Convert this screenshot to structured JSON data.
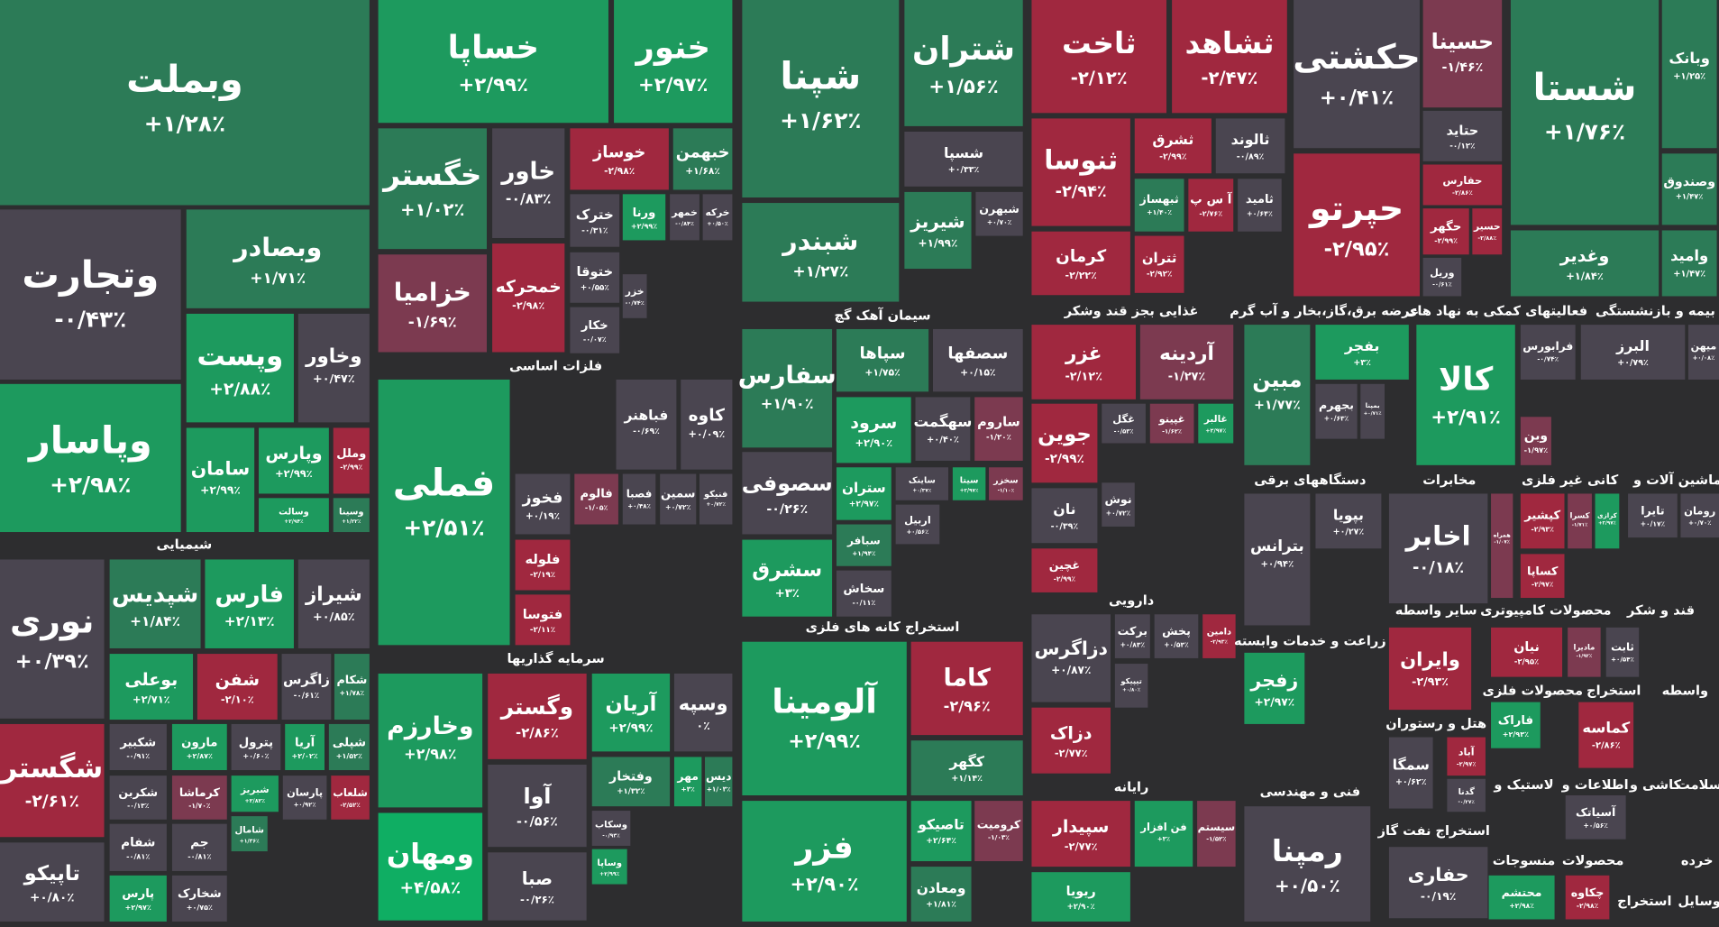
{
  "chart_data": {
    "type": "treemap",
    "categories": [
      "وبملت",
      "وتجارت",
      "وبصادر",
      "وپست",
      "وخاور",
      "وپاسار",
      "سامان",
      "وپارس",
      "وملل",
      "وسالت",
      "وسینا",
      "نوری",
      "شپدیس",
      "فارس",
      "شیراز",
      "بوعلی",
      "شفن",
      "زاگرس",
      "شکام",
      "شگستر",
      "شکبیر",
      "مارون",
      "پترول",
      "آریا",
      "شپلی",
      "شکربن",
      "کرماشا",
      "شبریز",
      "پارسان",
      "شلعاب",
      "شامال",
      "شفام",
      "جم",
      "تاپیکو",
      "پارس",
      "شخارک",
      "خساپا",
      "خنور",
      "خگستر",
      "خاور",
      "خوساز",
      "خبهمن",
      "خترک",
      "ورنا",
      "خمهر",
      "خرکه",
      "خزامیا",
      "خمحرکه",
      "ختوقا",
      "خزر",
      "خکار",
      "فملی",
      "فباهنر",
      "کاوه",
      "فخوز",
      "فالوم",
      "فصبا",
      "سمین",
      "فنیکو",
      "فلوله",
      "فتوسا",
      "وخارزم",
      "ومهان",
      "وگستر",
      "آریان",
      "وسپه",
      "آوا",
      "وفتخار",
      "مهر",
      "دیس",
      "وسکاب",
      "صبا",
      "وساپا",
      "شپنا",
      "شتران",
      "شسپا",
      "شبندر",
      "شیریز",
      "شبهرن",
      "سفارس",
      "سپاها",
      "سصفها",
      "سرود",
      "سهگمت",
      "ساروم",
      "سصوفی",
      "ستران",
      "ساینک",
      "سیتا",
      "سخزر",
      "اربیل",
      "سبافر",
      "سشرق",
      "سخاش",
      "آلومینا",
      "کاما",
      "کگهر",
      "فزر",
      "تاصیکو",
      "کرومیت",
      "ومعادن",
      "ثاخت",
      "ثشاهد",
      "ثنوسا",
      "ثشرق",
      "ثالوند",
      "ثبهساز",
      "آ س پ",
      "ثامید",
      "کرمان",
      "ثتران",
      "غزر",
      "آردینه",
      "جوین",
      "غگل",
      "غپینو",
      "غالبر",
      "نان",
      "نوش",
      "غچین",
      "دزاگرس",
      "برکت",
      "پخش",
      "دامین",
      "تیپیکو",
      "دزاک",
      "سپیدار",
      "فن افزار",
      "سیستم",
      "ریویا",
      "حکشتی",
      "حسینا",
      "حتاید",
      "حفارس",
      "حپرتو",
      "حگهر",
      "حسیر",
      "وریل",
      "شستا",
      "وبانک",
      "وصندوق",
      "وامید",
      "وغدیر",
      "مبین",
      "بفجر",
      "بجهرم",
      "بمپنا",
      "کالا",
      "فرابورس",
      "البرز",
      "میهن",
      "وبن",
      "بترانس",
      "بپویا",
      "اخابر",
      "همراه",
      "کپشیر",
      "کسرا",
      "کرازی",
      "کساپا",
      "تایرا",
      "رومان",
      "زفجر",
      "وایران",
      "نیان",
      "مادیرا",
      "ثابت",
      "فاراک",
      "کماسه",
      "سمگا",
      "آباد",
      "گدنا",
      "رمپنا",
      "آسیاتک",
      "حفاری",
      "محتشم",
      "چکاوه"
    ],
    "values": [
      1.28,
      -0.43,
      1.71,
      2.88,
      0.47,
      2.98,
      2.99,
      2.99,
      -2.99,
      2.94,
      1.22,
      0.39,
      1.84,
      2.13,
      0.85,
      2.71,
      -2.1,
      -0.61,
      1.78,
      -2.61,
      -0.91,
      2.87,
      0.6,
      2.02,
      1.52,
      -0.13,
      -1.7,
      2.82,
      0.92,
      -2.52,
      1.36,
      -0.81,
      -0.81,
      0.8,
      2.97,
      0.75,
      2.99,
      2.97,
      1.02,
      -0.83,
      -2.98,
      1.68,
      -0.31,
      2.99,
      -0.84,
      0.5,
      -1.69,
      -2.98,
      0.55,
      -0.74,
      -0.07,
      2.51,
      -0.69,
      0.09,
      0.19,
      -1.05,
      0.48,
      0.72,
      0.72,
      -2.19,
      -2.11,
      2.98,
      4.58,
      -2.86,
      2.99,
      0,
      -0.56,
      1.32,
      3,
      1.03,
      -0.93,
      -0.26,
      2.99,
      1.62,
      1.56,
      0.33,
      1.27,
      1.99,
      0.7,
      1.9,
      1.75,
      0.15,
      2.9,
      0.4,
      -1.2,
      -0.26,
      2.97,
      0.37,
      2.97,
      -1.1,
      0.56,
      1.94,
      3,
      -0.11,
      2.99,
      -2.96,
      1.14,
      2.9,
      2.64,
      -1.03,
      1.81,
      -2.12,
      -2.47,
      -2.94,
      -2.99,
      -0.89,
      1.4,
      -2.76,
      0.64,
      -2.22,
      -2.92,
      -2.12,
      -1.27,
      -2.99,
      -0.53,
      -1.62,
      2.97,
      -0.39,
      0.72,
      -2.99,
      0.87,
      0.83,
      0.53,
      -2.93,
      0.8,
      -2.77,
      -2.77,
      3,
      -1.52,
      2.9,
      0.41,
      -1.46,
      -0.12,
      -2.86,
      -2.95,
      -2.99,
      -2.88,
      -0.61,
      1.76,
      1.25,
      1.47,
      1.47,
      1.84,
      1.77,
      3,
      0.63,
      0.71,
      2.91,
      -0.74,
      0.79,
      0.08,
      -1.97,
      0.94,
      0.27,
      -0.18,
      -1.07,
      -2.93,
      -1.71,
      2.97,
      -2.97,
      0.17,
      0.7,
      2.97,
      -2.93,
      -2.95,
      -1.92,
      0.54,
      2.93,
      -2.86,
      0.62,
      -2.97,
      -0.27,
      0.5,
      0.56,
      -0.19,
      2.98,
      -2.98
    ],
    "value_labels": [
      "+۱/۲۸٪",
      "-۰/۴۳٪",
      "+۱/۷۱٪",
      "+۲/۸۸٪",
      "+۰/۴۷٪",
      "+۲/۹۸٪",
      "+۲/۹۹٪",
      "+۲/۹۹٪",
      "-۲/۹۹٪",
      "+۲/۹۴٪",
      "+۱/۲۲٪",
      "+۰/۳۹٪",
      "+۱/۸۴٪",
      "+۲/۱۳٪",
      "+۰/۸۵٪",
      "+۲/۷۱٪",
      "-۲/۱۰٪",
      "-۰/۶۱٪",
      "+۱/۷۸٪",
      "-۲/۶۱٪",
      "-۰/۹۱٪",
      "+۲/۸۷٪",
      "+۰/۶۰٪",
      "+۲/۰۲٪",
      "+۱/۵۲٪",
      "-۰/۱۳٪",
      "-۱/۷۰٪",
      "+۲/۸۲٪",
      "+۰/۹۲٪",
      "-۲/۵۲٪",
      "+۱/۳۶٪",
      "-۰/۸۱٪",
      "-۰/۸۱٪",
      "+۰/۸۰٪",
      "+۲/۹۷٪",
      "+۰/۷۵٪",
      "+۲/۹۹٪",
      "+۲/۹۷٪",
      "+۱/۰۲٪",
      "-۰/۸۳٪",
      "-۲/۹۸٪",
      "+۱/۶۸٪",
      "-۰/۳۱٪",
      "+۲/۹۹٪",
      "-۰/۸۴٪",
      "+۰/۵۰٪",
      "-۱/۶۹٪",
      "-۲/۹۸٪",
      "+۰/۵۵٪",
      "-۰/۷۴٪",
      "-۰/۰۷٪",
      "+۲/۵۱٪",
      "-۰/۶۹٪",
      "+۰/۰۹٪",
      "+۰/۱۹٪",
      "-۱/۰۵٪",
      "+۰/۴۸٪",
      "+۰/۷۲٪",
      "+۰/۷۲٪",
      "-۲/۱۹٪",
      "-۲/۱۱٪",
      "+۲/۹۸٪",
      "+۴/۵۸٪",
      "-۲/۸۶٪",
      "+۲/۹۹٪",
      "۰٪",
      "-۰/۵۶٪",
      "+۱/۳۲٪",
      "+۳٪",
      "+۱/۰۳٪",
      "-۰/۹۳٪",
      "-۰/۲۶٪",
      "+۲/۹۹٪",
      "+۱/۶۲٪",
      "+۱/۵۶٪",
      "+۰/۳۳٪",
      "+۱/۲۷٪",
      "+۱/۹۹٪",
      "+۰/۷۰٪",
      "+۱/۹۰٪",
      "+۱/۷۵٪",
      "+۰/۱۵٪",
      "+۲/۹۰٪",
      "+۰/۴۰٪",
      "-۱/۲۰٪",
      "-۰/۲۶٪",
      "+۲/۹۷٪",
      "+۰/۳۷٪",
      "+۲/۹۷٪",
      "-۱/۱۰٪",
      "+۰/۵۶٪",
      "+۱/۹۴٪",
      "+۳٪",
      "-۰/۱۱٪",
      "+۲/۹۹٪",
      "-۲/۹۶٪",
      "+۱/۱۴٪",
      "+۲/۹۰٪",
      "+۲/۶۴٪",
      "-۱/۰۳٪",
      "+۱/۸۱٪",
      "-۲/۱۲٪",
      "-۲/۴۷٪",
      "-۲/۹۴٪",
      "-۲/۹۹٪",
      "-۰/۸۹٪",
      "+۱/۴۰٪",
      "-۲/۷۶٪",
      "+۰/۶۴٪",
      "-۲/۲۲٪",
      "-۲/۹۲٪",
      "-۲/۱۲٪",
      "-۱/۲۷٪",
      "-۲/۹۹٪",
      "-۰/۵۳٪",
      "-۱/۶۲٪",
      "+۲/۹۷٪",
      "-۰/۳۹٪",
      "+۰/۷۲٪",
      "-۲/۹۹٪",
      "+۰/۸۷٪",
      "+۰/۸۳٪",
      "+۰/۵۳٪",
      "-۲/۹۳٪",
      "+۰/۸۰٪",
      "-۲/۷۷٪",
      "-۲/۷۷٪",
      "+۳٪",
      "-۱/۵۲٪",
      "+۲/۹۰٪",
      "+۰/۴۱٪",
      "-۱/۴۶٪",
      "-۰/۱۲٪",
      "-۲/۸۶٪",
      "-۲/۹۵٪",
      "-۲/۹۹٪",
      "-۲/۸۸٪",
      "-۰/۶۱٪",
      "+۱/۷۶٪",
      "+۱/۲۵٪",
      "+۱/۴۷٪",
      "+۱/۴۷٪",
      "+۱/۸۴٪",
      "+۱/۷۷٪",
      "+۳٪",
      "+۰/۶۳٪",
      "+۰/۷۱٪",
      "+۲/۹۱٪",
      "-۰/۷۴٪",
      "+۰/۷۹٪",
      "+۰/۰۸٪",
      "-۱/۹۷٪",
      "+۰/۹۴٪",
      "+۰/۲۷٪",
      "-۰/۱۸٪",
      "-۱/۰۷٪",
      "-۲/۹۳٪",
      "-۱/۷۱٪",
      "+۲/۹۷٪",
      "-۲/۹۷٪",
      "+۰/۱۷٪",
      "+۰/۷۰٪",
      "+۲/۹۷٪",
      "-۲/۹۳٪",
      "-۲/۹۵٪",
      "-۱/۹۲٪",
      "+۰/۵۴٪",
      "+۲/۹۳٪",
      "-۲/۸۶٪",
      "+۰/۶۲٪",
      "-۲/۹۷٪",
      "-۰/۲۷٪",
      "+۰/۵۰٪",
      "+۰/۵۶٪",
      "-۰/۱۹٪",
      "+۲/۹۸٪",
      "-۲/۹۸٪"
    ],
    "groups": [
      "شیمیایی",
      "فلزات اساسی",
      "سرمایه گذاریها",
      "سیمان آهک گچ",
      "استخراج کانه های فلزی",
      "غذایی بجز قند وشکر",
      "دارویی",
      "رایانه",
      "عرضه برق،گاز،بخار و آب گرم",
      "فعالیتهای کمکی به نهاد های",
      "بیمه و بازنشستگی",
      "دستگاههای برقی",
      "مخابرات",
      "کانی غیر فلزی",
      "ماشین آلات و",
      "سایر واسطه",
      "محصولات کامپیوتری",
      "قند و شکر",
      "زراعت و خدمات وابسته",
      "محصولات فلزی",
      "استخراج",
      "واسطه",
      "هتل و رستوران",
      "فنی و مهندسی",
      "لاستیک و",
      "اطلاعات و",
      "کاشی و",
      "سلامت",
      "استخراج نفت گاز",
      "منسوجات",
      "محصولات",
      "خرده",
      "استخراج",
      "وسایل"
    ]
  }
}
